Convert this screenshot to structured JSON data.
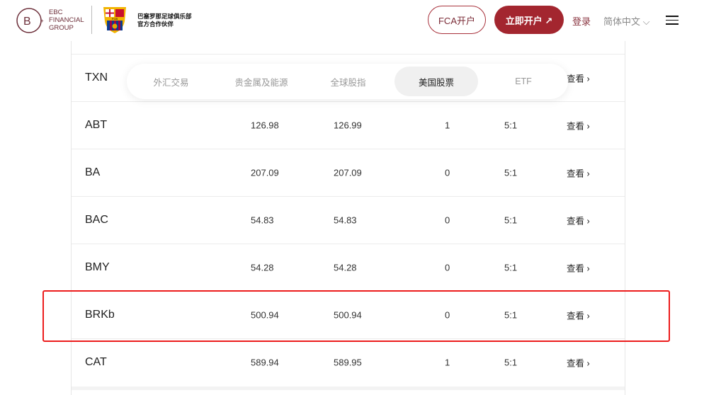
{
  "header": {
    "brand": [
      "EBC",
      "FINANCIAL",
      "GROUP"
    ],
    "crest_text": "FCB",
    "partner": [
      "巴塞罗那足球俱乐部",
      "官方合作伙伴"
    ],
    "fca_label": "FCA开户",
    "open_label": "立即开户 ↗",
    "login_label": "登录",
    "lang_label": "简体中文"
  },
  "tabs": [
    {
      "label": "外汇交易"
    },
    {
      "label": "贵金属及能源"
    },
    {
      "label": "全球股指"
    },
    {
      "label": "美国股票",
      "active": true
    },
    {
      "label": "ETF"
    }
  ],
  "rows": [
    {
      "symbol": "TXN",
      "bid": "",
      "ask": "",
      "min": "",
      "leverage": "",
      "view": "查看 ›"
    },
    {
      "symbol": "ABT",
      "bid": "126.98",
      "ask": "126.99",
      "min": "1",
      "leverage": "5:1",
      "view": "查看 ›"
    },
    {
      "symbol": "BA",
      "bid": "207.09",
      "ask": "207.09",
      "min": "0",
      "leverage": "5:1",
      "view": "查看 ›"
    },
    {
      "symbol": "BAC",
      "bid": "54.83",
      "ask": "54.83",
      "min": "0",
      "leverage": "5:1",
      "view": "查看 ›"
    },
    {
      "symbol": "BMY",
      "bid": "54.28",
      "ask": "54.28",
      "min": "0",
      "leverage": "5:1",
      "view": "查看 ›"
    },
    {
      "symbol": "BRKb",
      "bid": "500.94",
      "ask": "500.94",
      "min": "0",
      "leverage": "5:1",
      "view": "查看 ›"
    },
    {
      "symbol": "CAT",
      "bid": "589.94",
      "ask": "589.95",
      "min": "1",
      "leverage": "5:1",
      "view": "查看 ›"
    }
  ],
  "colors": {
    "brand": "#a3262f",
    "highlight": "#ec1c1c"
  }
}
